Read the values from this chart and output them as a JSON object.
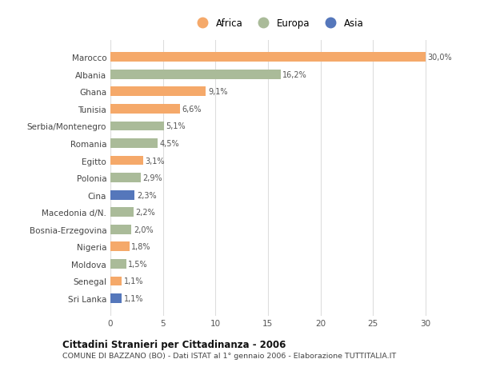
{
  "countries": [
    "Marocco",
    "Albania",
    "Ghana",
    "Tunisia",
    "Serbia/Montenegro",
    "Romania",
    "Egitto",
    "Polonia",
    "Cina",
    "Macedonia d/N.",
    "Bosnia-Erzegovina",
    "Nigeria",
    "Moldova",
    "Senegal",
    "Sri Lanka"
  ],
  "values": [
    30.0,
    16.2,
    9.1,
    6.6,
    5.1,
    4.5,
    3.1,
    2.9,
    2.3,
    2.2,
    2.0,
    1.8,
    1.5,
    1.1,
    1.1
  ],
  "labels": [
    "30,0%",
    "16,2%",
    "9,1%",
    "6,6%",
    "5,1%",
    "4,5%",
    "3,1%",
    "2,9%",
    "2,3%",
    "2,2%",
    "2,0%",
    "1,8%",
    "1,5%",
    "1,1%",
    "1,1%"
  ],
  "continents": [
    "Africa",
    "Europa",
    "Africa",
    "Africa",
    "Europa",
    "Europa",
    "Africa",
    "Europa",
    "Asia",
    "Europa",
    "Europa",
    "Africa",
    "Europa",
    "Africa",
    "Asia"
  ],
  "colors": {
    "Africa": "#F5A96A",
    "Europa": "#AABB99",
    "Asia": "#5577BB"
  },
  "xlim": [
    0,
    32
  ],
  "xticks": [
    0,
    5,
    10,
    15,
    20,
    25,
    30
  ],
  "title1": "Cittadini Stranieri per Cittadinanza - 2006",
  "title2": "COMUNE DI BAZZANO (BO) - Dati ISTAT al 1° gennaio 2006 - Elaborazione TUTTITALIA.IT",
  "background_color": "#ffffff",
  "plot_bg_color": "#ffffff",
  "grid_color": "#dddddd"
}
